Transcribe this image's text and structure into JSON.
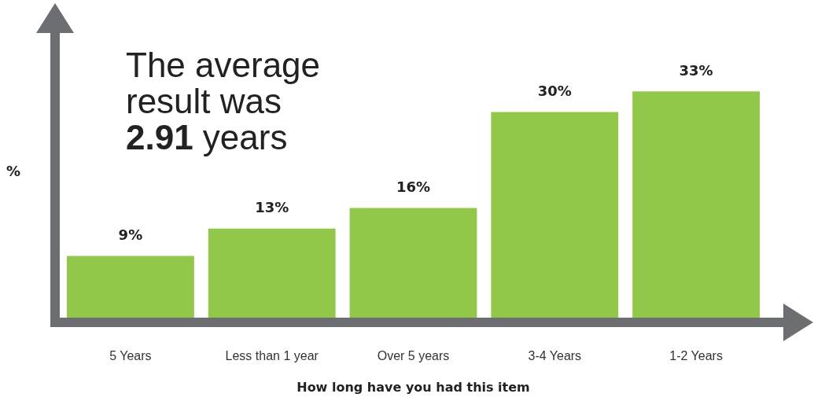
{
  "chart_data": {
    "type": "bar",
    "categories": [
      "5 Years",
      "Less than 1 year",
      "Over 5 years",
      "3-4 Years",
      "1-2 Years"
    ],
    "values": [
      9,
      13,
      16,
      30,
      33
    ],
    "value_labels": [
      "9%",
      "13%",
      "16%",
      "30%",
      "33%"
    ],
    "color": "#92c84a",
    "xlabel": "How long have you had this item",
    "ylabel": "%",
    "annotations": [
      "The average result was 2.91 years"
    ],
    "tick_labels": "x",
    "grid": false
  }
}
